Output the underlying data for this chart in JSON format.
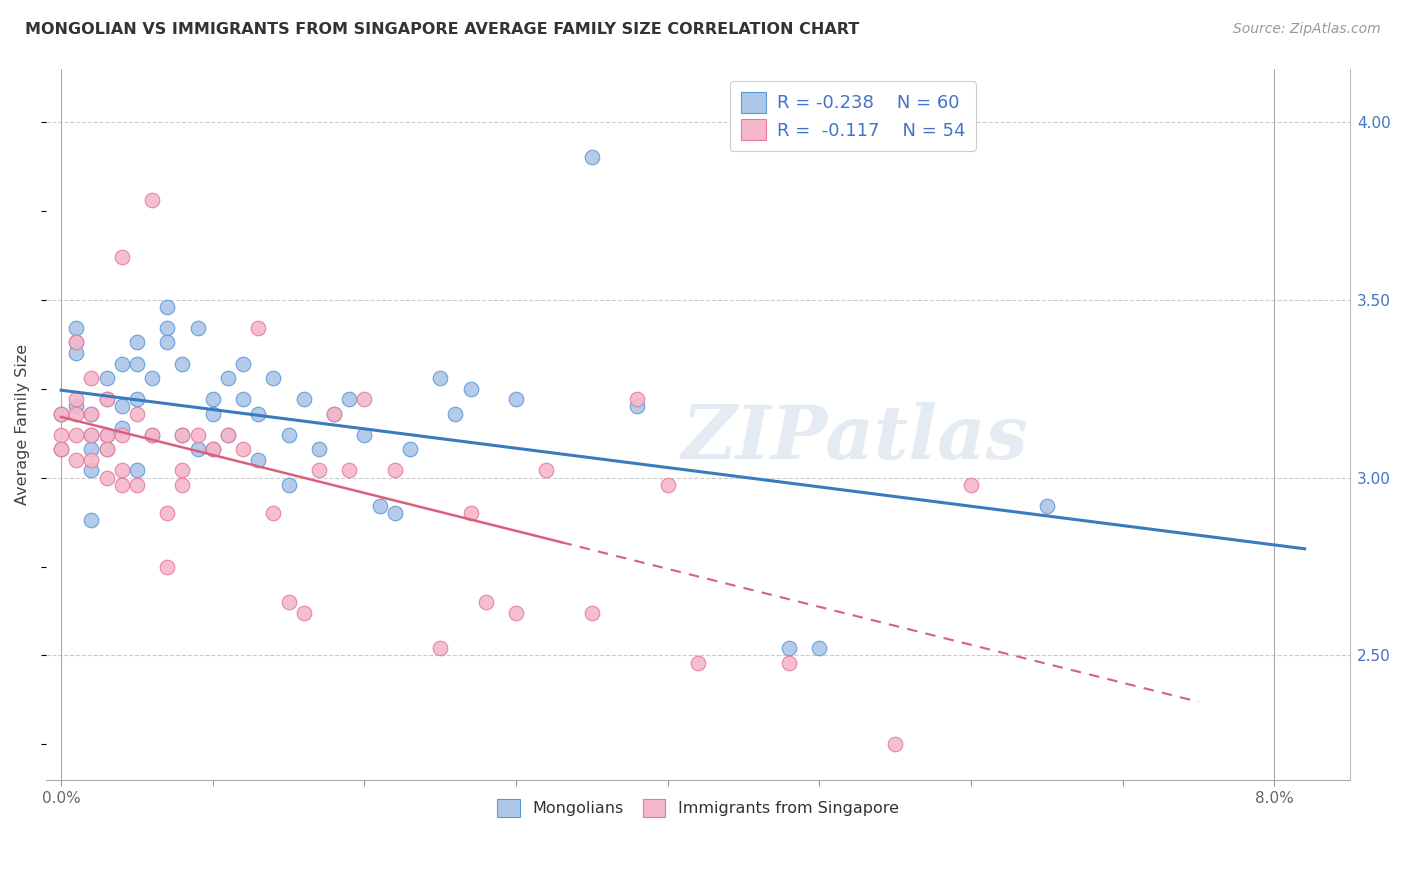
{
  "title": "MONGOLIAN VS IMMIGRANTS FROM SINGAPORE AVERAGE FAMILY SIZE CORRELATION CHART",
  "source": "Source: ZipAtlas.com",
  "ylabel": "Average Family Size",
  "ylim": [
    2.15,
    4.15
  ],
  "xlim": [
    -0.001,
    0.085
  ],
  "yticks_right": [
    2.5,
    3.0,
    3.5,
    4.0
  ],
  "xticks": [
    0.0,
    0.01,
    0.02,
    0.03,
    0.04,
    0.05,
    0.06,
    0.07,
    0.08
  ],
  "xtick_labels": [
    "0.0%",
    "",
    "",
    "",
    "",
    "",
    "",
    "",
    "8.0%"
  ],
  "legend_blue_r": "-0.238",
  "legend_blue_n": "60",
  "legend_pink_r": "-0.117",
  "legend_pink_n": "54",
  "watermark": "ZIPatlas",
  "blue_fill": "#aec6e8",
  "pink_fill": "#f5b8cb",
  "blue_edge": "#5b9bd5",
  "pink_edge": "#e8799a",
  "blue_line": "#3a7abf",
  "pink_line": "#d9607a",
  "text_blue": "#4472c4",
  "mongolians_label": "Mongolians",
  "singapore_label": "Immigrants from Singapore",
  "blue_x": [
    0.0,
    0.0,
    0.001,
    0.001,
    0.001,
    0.001,
    0.002,
    0.002,
    0.002,
    0.002,
    0.002,
    0.003,
    0.003,
    0.003,
    0.003,
    0.004,
    0.004,
    0.004,
    0.005,
    0.005,
    0.005,
    0.005,
    0.006,
    0.006,
    0.007,
    0.007,
    0.007,
    0.008,
    0.008,
    0.009,
    0.009,
    0.01,
    0.01,
    0.01,
    0.011,
    0.011,
    0.012,
    0.012,
    0.013,
    0.013,
    0.014,
    0.015,
    0.015,
    0.016,
    0.017,
    0.018,
    0.019,
    0.02,
    0.021,
    0.022,
    0.023,
    0.025,
    0.026,
    0.027,
    0.03,
    0.035,
    0.038,
    0.048,
    0.05,
    0.065
  ],
  "blue_y": [
    3.18,
    3.08,
    3.42,
    3.38,
    3.35,
    3.2,
    3.18,
    3.12,
    3.08,
    3.02,
    2.88,
    3.28,
    3.22,
    3.12,
    3.08,
    3.32,
    3.2,
    3.14,
    3.38,
    3.32,
    3.22,
    3.02,
    3.28,
    3.12,
    3.48,
    3.42,
    3.38,
    3.32,
    3.12,
    3.42,
    3.08,
    3.22,
    3.18,
    3.08,
    3.28,
    3.12,
    3.32,
    3.22,
    3.18,
    3.05,
    3.28,
    3.12,
    2.98,
    3.22,
    3.08,
    3.18,
    3.22,
    3.12,
    2.92,
    2.9,
    3.08,
    3.28,
    3.18,
    3.25,
    3.22,
    3.9,
    3.2,
    2.52,
    2.52,
    2.92
  ],
  "pink_x": [
    0.0,
    0.0,
    0.0,
    0.001,
    0.001,
    0.001,
    0.001,
    0.001,
    0.002,
    0.002,
    0.002,
    0.002,
    0.003,
    0.003,
    0.003,
    0.003,
    0.004,
    0.004,
    0.004,
    0.004,
    0.005,
    0.005,
    0.006,
    0.006,
    0.007,
    0.007,
    0.008,
    0.008,
    0.008,
    0.009,
    0.01,
    0.011,
    0.012,
    0.013,
    0.014,
    0.015,
    0.016,
    0.017,
    0.018,
    0.019,
    0.02,
    0.022,
    0.025,
    0.027,
    0.028,
    0.03,
    0.032,
    0.035,
    0.038,
    0.04,
    0.042,
    0.048,
    0.055,
    0.06
  ],
  "pink_y": [
    3.18,
    3.12,
    3.08,
    3.38,
    3.22,
    3.18,
    3.12,
    3.05,
    3.28,
    3.18,
    3.12,
    3.05,
    3.22,
    3.12,
    3.08,
    3.0,
    3.62,
    3.12,
    3.02,
    2.98,
    3.18,
    2.98,
    3.78,
    3.12,
    2.9,
    2.75,
    3.12,
    3.02,
    2.98,
    3.12,
    3.08,
    3.12,
    3.08,
    3.42,
    2.9,
    2.65,
    2.62,
    3.02,
    3.18,
    3.02,
    3.22,
    3.02,
    2.52,
    2.9,
    2.65,
    2.62,
    3.02,
    2.62,
    3.22,
    2.98,
    2.48,
    2.48,
    2.25,
    2.98
  ]
}
